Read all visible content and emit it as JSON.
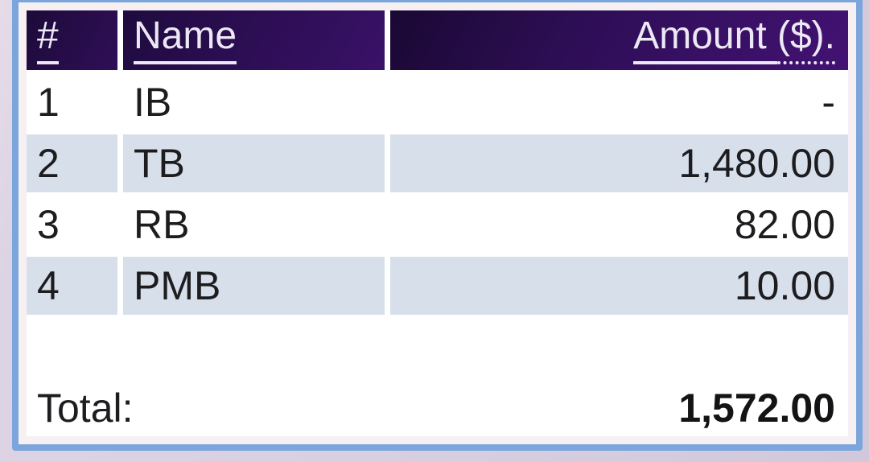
{
  "table": {
    "header": {
      "num": "#",
      "name": "Name",
      "amount_main": "Amount ",
      "amount_unit": "($)."
    },
    "rows": [
      {
        "num": "1",
        "name": "IB",
        "amount": "-"
      },
      {
        "num": "2",
        "name": "TB",
        "amount": "1,480.00"
      },
      {
        "num": "3",
        "name": "RB",
        "amount": "82.00"
      },
      {
        "num": "4",
        "name": "PMB",
        "amount": "10.00"
      }
    ],
    "total": {
      "label": "Total:",
      "amount": "1,572.00"
    }
  },
  "colors": {
    "frame_border_blue": "#7aa6db",
    "outer_background_lavender": "#d8cfe1",
    "card_margin": "#f7f0f2",
    "header_purple_dark": "#1d0a39",
    "header_purple_bright": "#431273",
    "header_text": "#ece8f4",
    "row_shaded": "#d7dfeb",
    "row_white": "#ffffff",
    "body_text": "#1d1d20"
  }
}
